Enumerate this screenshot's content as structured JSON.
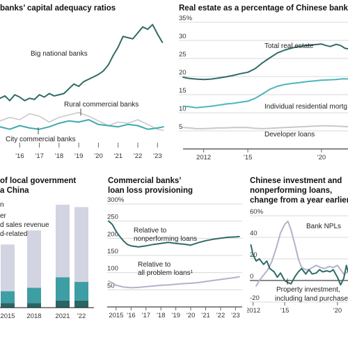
{
  "colors": {
    "dark_teal": "#2f6b66",
    "teal": "#3fa9ad",
    "light_teal": "#4db6b9",
    "gray": "#c8c8c8",
    "lavender": "#b3b1cc",
    "stack_light": "#d3d4e2",
    "stack_mid": "#3d9ea3",
    "stack_dark": "#2a6663"
  },
  "chart_data": [
    {
      "type": "line",
      "title": "banks’ capital adequacy ratios",
      "x_ticks": [
        "’16",
        "’17",
        "’18",
        "’19",
        "’20",
        "’21",
        "’22",
        "’23"
      ],
      "x_range": [
        2015.0,
        2023.45
      ],
      "y_range": [
        3.0,
        14.0
      ],
      "annotations": [
        "Big national banks",
        "Rural commercial banks",
        "City commercial banks"
      ],
      "series": [
        {
          "name": "Big national banks",
          "color": "#2f6b66",
          "x": [
            2015.0,
            2015.25,
            2015.5,
            2015.75,
            2016.0,
            2016.25,
            2016.5,
            2016.75,
            2017.0,
            2017.25,
            2017.5,
            2017.75,
            2018.0,
            2018.25,
            2018.5,
            2018.75,
            2019.0,
            2019.25,
            2019.5,
            2019.75,
            2020.0,
            2020.25,
            2020.5,
            2020.75,
            2021.0,
            2021.25,
            2021.5,
            2021.75,
            2022.0,
            2022.25,
            2022.5,
            2022.75,
            2023.0,
            2023.25
          ],
          "y": [
            7.2,
            7.4,
            7.0,
            7.5,
            7.3,
            7.0,
            7.2,
            7.1,
            7.5,
            7.3,
            7.6,
            7.4,
            7.5,
            7.6,
            8.0,
            8.4,
            8.2,
            8.6,
            8.8,
            9.0,
            9.2,
            9.5,
            10.0,
            10.8,
            11.5,
            12.4,
            12.3,
            12.2,
            12.7,
            13.2,
            13.0,
            13.4,
            12.6,
            11.9
          ]
        },
        {
          "name": "Rural commercial banks",
          "color": "#c8c8c8",
          "x": [
            2015.0,
            2015.5,
            2016.0,
            2016.5,
            2017.0,
            2017.5,
            2018.0,
            2018.5,
            2019.0,
            2019.5,
            2020.0,
            2020.5,
            2021.0,
            2021.5,
            2022.0,
            2022.5,
            2023.0,
            2023.3
          ],
          "y": [
            5.3,
            5.6,
            5.4,
            5.9,
            5.7,
            5.2,
            5.6,
            5.8,
            6.0,
            5.7,
            5.3,
            4.9,
            5.2,
            5.1,
            5.4,
            5.0,
            4.6,
            4.5
          ]
        },
        {
          "name": "City commercial banks",
          "color": "#3fa9ad",
          "x": [
            2015.0,
            2015.5,
            2016.0,
            2016.5,
            2017.0,
            2017.5,
            2018.0,
            2018.5,
            2019.0,
            2019.5,
            2020.0,
            2020.5,
            2021.0,
            2021.5,
            2022.0,
            2022.5,
            2023.0,
            2023.3
          ],
          "y": [
            4.8,
            4.6,
            4.9,
            4.7,
            4.6,
            4.8,
            5.1,
            5.3,
            5.2,
            5.4,
            5.0,
            4.9,
            4.8,
            5.0,
            4.9,
            4.6,
            4.7,
            4.8
          ]
        }
      ]
    },
    {
      "type": "line",
      "title": "Real estate as a percentage of Chinese banks’ lo",
      "x_ticks": [
        "2012",
        "’15",
        "’20"
      ],
      "y_ticks": [
        "35%",
        "30",
        "25",
        "20",
        "15",
        "10",
        "5"
      ],
      "x_range": [
        2010.6,
        2021.9
      ],
      "y_range": [
        0,
        35
      ],
      "annotations": [
        "Total real estate",
        "Individual residential mortg",
        "Developer loans"
      ],
      "series": [
        {
          "name": "Total real estate",
          "color": "#2f6b66",
          "x": [
            2010.6,
            2011.0,
            2011.5,
            2012.0,
            2012.5,
            2013.0,
            2013.5,
            2014.0,
            2014.5,
            2015.0,
            2015.5,
            2016.0,
            2016.5,
            2017.0,
            2017.5,
            2018.0,
            2018.5,
            2019.0,
            2019.5,
            2020.0,
            2020.3,
            2020.6,
            2021.0,
            2021.3,
            2021.6,
            2021.9
          ],
          "y": [
            19.8,
            19.5,
            19.3,
            19.2,
            19.3,
            19.6,
            19.9,
            20.3,
            20.8,
            21.2,
            22.2,
            23.8,
            25.2,
            26.5,
            27.3,
            27.9,
            28.3,
            28.6,
            28.8,
            29.0,
            28.6,
            28.3,
            28.9,
            28.6,
            27.8,
            27.6
          ]
        },
        {
          "name": "Individual residential mortg",
          "color": "#4db6b9",
          "x": [
            2010.6,
            2011.0,
            2011.5,
            2012.0,
            2012.5,
            2013.0,
            2013.5,
            2014.0,
            2014.5,
            2015.0,
            2015.5,
            2016.0,
            2016.5,
            2017.0,
            2017.5,
            2018.0,
            2018.5,
            2019.0,
            2019.5,
            2020.0,
            2020.5,
            2021.0,
            2021.5,
            2021.9
          ],
          "y": [
            11.8,
            11.7,
            11.4,
            11.6,
            11.8,
            12.1,
            12.4,
            12.6,
            12.9,
            13.2,
            14.0,
            15.2,
            16.5,
            17.3,
            17.8,
            18.1,
            18.3,
            18.6,
            18.8,
            19.0,
            19.1,
            19.2,
            19.4,
            19.3
          ]
        },
        {
          "name": "Developer loans",
          "color": "#c8c8c8",
          "x": [
            2010.6,
            2011.0,
            2011.5,
            2012.0,
            2012.5,
            2013.0,
            2013.5,
            2014.0,
            2014.5,
            2015.0,
            2015.5,
            2016.0,
            2016.5,
            2017.0,
            2017.5,
            2018.0,
            2018.5,
            2019.0,
            2019.5,
            2020.0,
            2020.5,
            2021.0,
            2021.5,
            2021.9
          ],
          "y": [
            5.9,
            5.8,
            5.6,
            5.6,
            5.7,
            5.8,
            5.8,
            5.9,
            5.9,
            5.9,
            5.7,
            5.6,
            5.7,
            5.8,
            5.9,
            6.0,
            6.1,
            6.2,
            6.3,
            6.4,
            6.4,
            6.3,
            6.2,
            6.1
          ]
        }
      ]
    },
    {
      "type": "bar",
      "title_lines": [
        "of local government",
        "a China"
      ],
      "legend_lines": [
        "n",
        "er",
        "d sales revenue",
        "d-related tax"
      ],
      "categories": [
        "2015",
        "2018",
        "2021",
        "’22"
      ],
      "y_range": [
        0,
        100
      ],
      "series": [
        {
          "name": "",
          "color": "#2a6663",
          "values": [
            4,
            4,
            6,
            6
          ]
        },
        {
          "name": "",
          "color": "#3d9ea3",
          "values": [
            10,
            13,
            20,
            16
          ]
        },
        {
          "name": "",
          "color": "#d3d4e2",
          "values": [
            40,
            49,
            62,
            64
          ]
        }
      ]
    },
    {
      "type": "line",
      "title_lines": [
        "Commercial banks’",
        "loan loss provisioning"
      ],
      "x_ticks": [
        "2015",
        "’16",
        "’17",
        "’18",
        "’19",
        "’20",
        "’21",
        "’22",
        "’23"
      ],
      "y_ticks": [
        "300%",
        "250",
        "200",
        "150",
        "100",
        "50"
      ],
      "x_range": [
        2014.4,
        2023.45
      ],
      "y_range": [
        0,
        300
      ],
      "annotations": [
        "Relative to",
        "nonperforming loans",
        "Relative to",
        "all problem loans¹"
      ],
      "series": [
        {
          "name": "Relative to nonperforming loans",
          "color": "#2f6b66",
          "x": [
            2014.5,
            2014.75,
            2015.0,
            2015.25,
            2015.5,
            2015.75,
            2016.0,
            2016.5,
            2017.0,
            2017.5,
            2018.0,
            2018.5,
            2019.0,
            2019.5,
            2020.0,
            2020.5,
            2021.0,
            2021.5,
            2022.0,
            2022.5,
            2023.0,
            2023.25
          ],
          "y": [
            250,
            240,
            220,
            205,
            192,
            182,
            178,
            175,
            178,
            182,
            185,
            188,
            185,
            183,
            180,
            187,
            193,
            197,
            200,
            203,
            204,
            205
          ]
        },
        {
          "name": "Relative to all problem loans¹",
          "color": "#b3b1cc",
          "x": [
            2014.5,
            2014.75,
            2015.0,
            2015.5,
            2016.0,
            2016.5,
            2017.0,
            2017.5,
            2018.0,
            2018.5,
            2019.0,
            2019.5,
            2020.0,
            2020.5,
            2021.0,
            2021.5,
            2022.0,
            2022.5,
            2023.0,
            2023.25
          ],
          "y": [
            75,
            70,
            63,
            58,
            56,
            57,
            59,
            61,
            63,
            64,
            66,
            68,
            69,
            71,
            74,
            77,
            80,
            83,
            86,
            88
          ]
        }
      ]
    },
    {
      "type": "line",
      "title_lines": [
        "Chinese investment and",
        "nonperforming loans,",
        "change from a year earlier"
      ],
      "x_ticks": [
        "2012",
        "’15",
        "’20"
      ],
      "y_ticks": [
        "60%",
        "40",
        "20",
        "0",
        "-20"
      ],
      "x_range": [
        2011.7,
        2021.0
      ],
      "y_range": [
        -20,
        60
      ],
      "annotations": [
        "Bank NPLs",
        "Property investment,",
        "including land purchases"
      ],
      "series": [
        {
          "name": "Bank NPLs",
          "color": "#b3b1cc",
          "x": [
            2012.3,
            2012.6,
            2013.0,
            2013.4,
            2013.8,
            2014.2,
            2014.6,
            2015.0,
            2015.3,
            2015.6,
            2016.0,
            2016.3,
            2016.6,
            2017.0,
            2017.3,
            2017.6,
            2018.0,
            2018.4,
            2018.8,
            2019.2,
            2019.6,
            2020.0,
            2020.3,
            2020.6,
            2021.0
          ],
          "y": [
            -5,
            0,
            5,
            10,
            18,
            30,
            44,
            52,
            55,
            47,
            32,
            20,
            12,
            10,
            10,
            12,
            14,
            12,
            11,
            13,
            12,
            14,
            10,
            6,
            8
          ]
        },
        {
          "name": "Property investment, including land purchases",
          "color": "#2f6b66",
          "x": [
            2011.8,
            2012.0,
            2012.3,
            2012.6,
            2013.0,
            2013.3,
            2013.6,
            2014.0,
            2014.3,
            2014.6,
            2015.0,
            2015.3,
            2015.6,
            2016.0,
            2016.3,
            2016.6,
            2017.0,
            2017.3,
            2017.6,
            2018.0,
            2018.3,
            2018.6,
            2019.0,
            2019.3,
            2019.6,
            2020.0,
            2020.3,
            2020.6,
            2020.85,
            2021.0
          ],
          "y": [
            33,
            24,
            18,
            20,
            15,
            18,
            11,
            8,
            3,
            7,
            0,
            -2,
            -3,
            4,
            8,
            11,
            6,
            10,
            6,
            7,
            10,
            8,
            9,
            8,
            10,
            3,
            -4,
            2,
            14,
            8
          ]
        }
      ]
    }
  ]
}
